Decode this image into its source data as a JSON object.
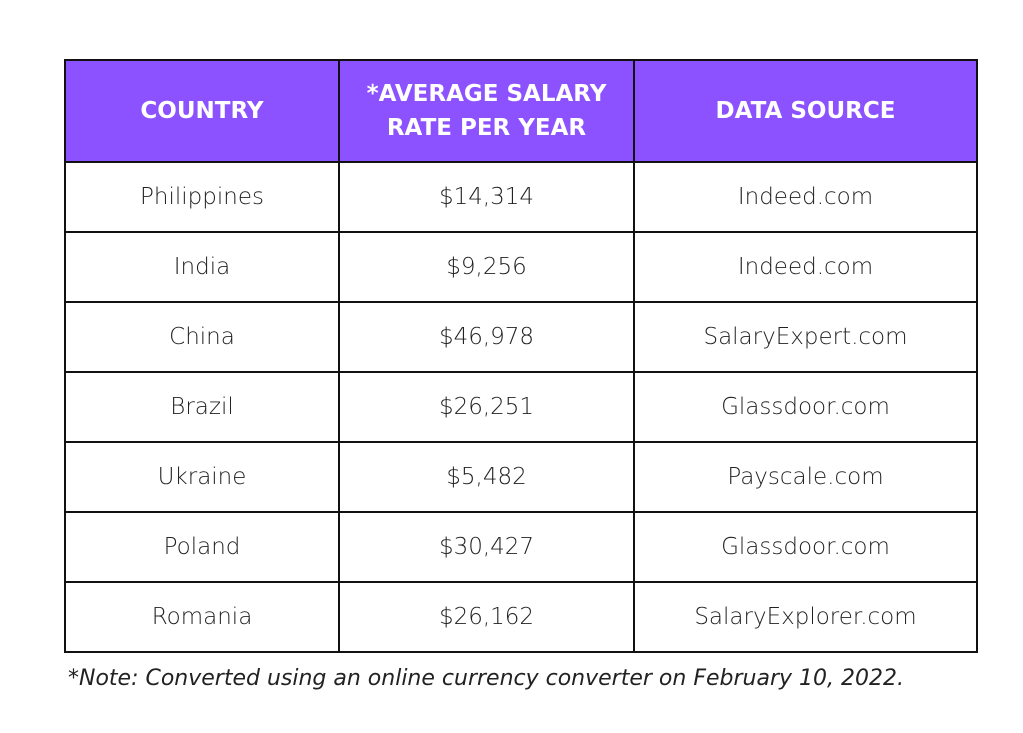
{
  "table": {
    "header": [
      "COUNTRY",
      "*AVERAGE SALARY RATE PER YEAR",
      "DATA SOURCE"
    ],
    "rows": [
      [
        "Philippines",
        "$14,314",
        "Indeed.com"
      ],
      [
        "India",
        "$9,256",
        "Indeed.com"
      ],
      [
        "China",
        "$46,978",
        "SalaryExpert.com"
      ],
      [
        "Brazil",
        "$26,251",
        "Glassdoor.com"
      ],
      [
        "Ukraine",
        "$5,482",
        "Payscale.com"
      ],
      [
        "Poland",
        "$30,427",
        "Glassdoor.com"
      ],
      [
        "Romania",
        "$26,162",
        "SalaryExplorer.com"
      ]
    ]
  },
  "note": "*Note: Converted using an online currency converter on February 10, 2022."
}
